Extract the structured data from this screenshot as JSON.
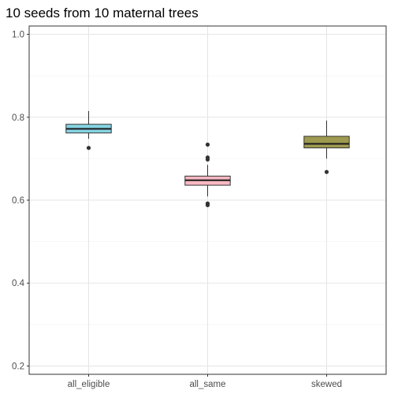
{
  "chart_data": {
    "type": "boxplot",
    "title": "10 seeds from 10 maternal trees",
    "xlabel": "",
    "ylabel": "",
    "ylim": [
      0.18,
      1.02
    ],
    "yticks": [
      "0.2",
      "0.4",
      "0.6",
      "0.8",
      "1.0"
    ],
    "grid": true,
    "legend": "none",
    "categories": [
      "all_eligible",
      "all_same",
      "skewed"
    ],
    "boxes": [
      {
        "category": "all_eligible",
        "color": "#86D3E2",
        "q1": 0.762,
        "median": 0.772,
        "q3": 0.783,
        "whisker_low": 0.748,
        "whisker_high": 0.815,
        "outliers": [
          0.726
        ]
      },
      {
        "category": "all_same",
        "color": "#F7B8C2",
        "q1": 0.636,
        "median": 0.648,
        "q3": 0.658,
        "whisker_low": 0.609,
        "whisker_high": 0.685,
        "outliers": [
          0.588,
          0.592,
          0.698,
          0.703,
          0.734
        ]
      },
      {
        "category": "skewed",
        "color": "#9E9A4F",
        "q1": 0.726,
        "median": 0.736,
        "q3": 0.754,
        "whisker_low": 0.7,
        "whisker_high": 0.792,
        "outliers": [
          0.668
        ]
      }
    ]
  }
}
